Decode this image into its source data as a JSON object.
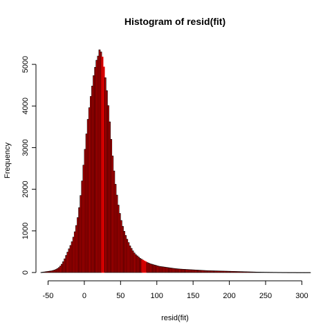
{
  "chart_data": {
    "type": "bar",
    "title": "Histogram of resid(fit)",
    "xlabel": "resid(fit)",
    "ylabel": "Frequency",
    "xlim": [
      -60,
      312
    ],
    "ylim": [
      0,
      5350
    ],
    "x_ticks": [
      -50,
      0,
      50,
      100,
      150,
      200,
      250,
      300
    ],
    "y_ticks": [
      0,
      1000,
      2000,
      3000,
      4000,
      5000
    ],
    "bin_width": 2,
    "bin_start": -60,
    "grid": false,
    "bar_fill": "#c00000",
    "bar_stroke": "#000000",
    "highlight_stroke": "#ff0000",
    "highlight_bins": [
      24,
      26,
      80,
      82,
      84
    ],
    "values": [
      5,
      10,
      15,
      20,
      25,
      30,
      35,
      40,
      50,
      60,
      75,
      95,
      120,
      155,
      200,
      260,
      330,
      410,
      490,
      570,
      650,
      740,
      850,
      980,
      1130,
      1320,
      1560,
      1850,
      2200,
      2580,
      2960,
      3330,
      3680,
      3960,
      4230,
      4480,
      4730,
      4930,
      5100,
      5200,
      5350,
      5300,
      5180,
      4940,
      4680,
      4370,
      4010,
      3620,
      3200,
      2800,
      2440,
      2120,
      1860,
      1620,
      1420,
      1250,
      1110,
      990,
      890,
      800,
      720,
      640,
      580,
      520,
      470,
      430,
      400,
      370,
      340,
      320,
      300,
      280,
      260,
      240,
      225,
      210,
      200,
      190,
      180,
      170,
      160,
      150,
      145,
      140,
      135,
      130,
      125,
      120,
      115,
      110,
      105,
      100,
      96,
      92,
      88,
      85,
      82,
      80,
      78,
      76,
      74,
      72,
      70,
      68,
      66,
      64,
      62,
      60,
      58,
      56,
      54,
      52,
      50,
      48,
      46,
      45,
      44,
      43,
      42,
      41,
      40,
      39,
      38,
      37,
      36,
      35,
      34,
      33,
      32,
      31,
      30,
      29,
      28,
      27,
      26,
      25,
      24,
      23,
      22,
      21,
      20,
      19,
      18,
      17,
      16,
      15,
      14,
      13,
      12,
      11,
      10,
      10,
      9,
      9,
      8,
      8,
      7,
      7,
      6,
      6,
      5,
      5,
      5,
      4,
      4,
      4,
      3,
      3,
      3,
      3,
      2,
      2,
      2,
      2,
      2,
      2,
      1,
      1,
      1,
      1,
      1,
      1,
      1,
      1,
      1,
      1
    ]
  }
}
